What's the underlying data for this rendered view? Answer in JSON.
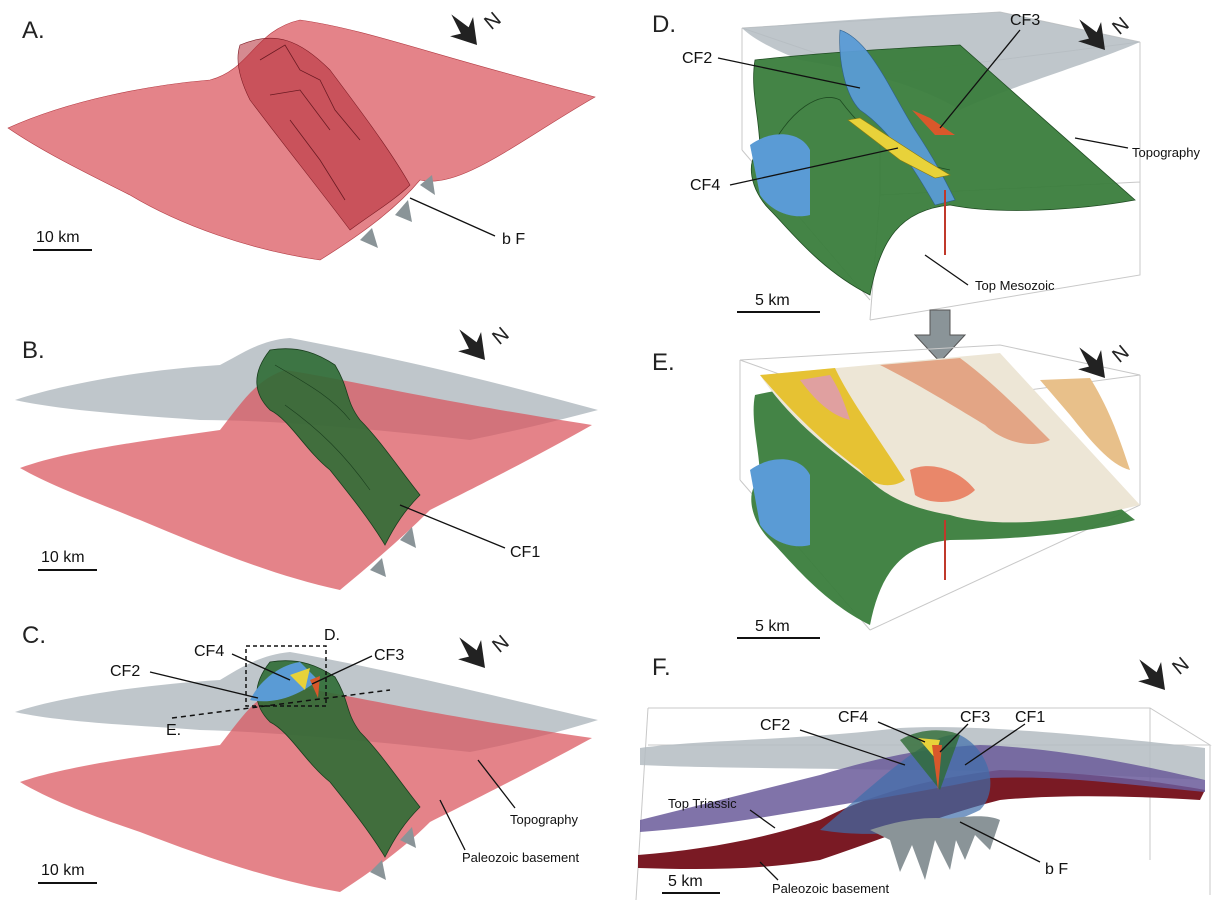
{
  "panels": {
    "A": {
      "label": "A.",
      "scale": "10 km",
      "north": "N",
      "labels": {
        "bf": "b F"
      }
    },
    "B": {
      "label": "B.",
      "scale": "10 km",
      "north": "N",
      "labels": {
        "cf1": "CF1"
      }
    },
    "C": {
      "label": "C.",
      "scale": "10 km",
      "north": "N",
      "labels": {
        "cf2": "CF2",
        "cf3": "CF3",
        "cf4": "CF4",
        "d": "D.",
        "e": "E.",
        "topography": "Topography",
        "paleozoic": "Paleozoic basement"
      }
    },
    "D": {
      "label": "D.",
      "scale": "5 km",
      "north": "N",
      "labels": {
        "cf2": "CF2",
        "cf3": "CF3",
        "cf4": "CF4",
        "topography": "Topography",
        "top_mesozoic": "Top Mesozoic"
      }
    },
    "E": {
      "label": "E.",
      "scale": "5 km",
      "north": "N"
    },
    "F": {
      "label": "F.",
      "scale": "5 km",
      "north": "N",
      "labels": {
        "cf1": "CF1",
        "cf2": "CF2",
        "cf3": "CF3",
        "cf4": "CF4",
        "top_triassic": "Top Triassic",
        "paleozoic": "Paleozoic basement",
        "bf": "b F"
      }
    }
  },
  "colors": {
    "basement": "#d9535c",
    "topography": "#b4bcc2",
    "fault_green": "#2f6b35",
    "mesozoic_green": "#3a7d3c",
    "fault_blue": "#5a9bd5",
    "fault_yellow": "#e8d23a",
    "fault_orange": "#d9582b",
    "triassic_purple": "#6a5a9a",
    "fault_grey": "#8a9498"
  }
}
